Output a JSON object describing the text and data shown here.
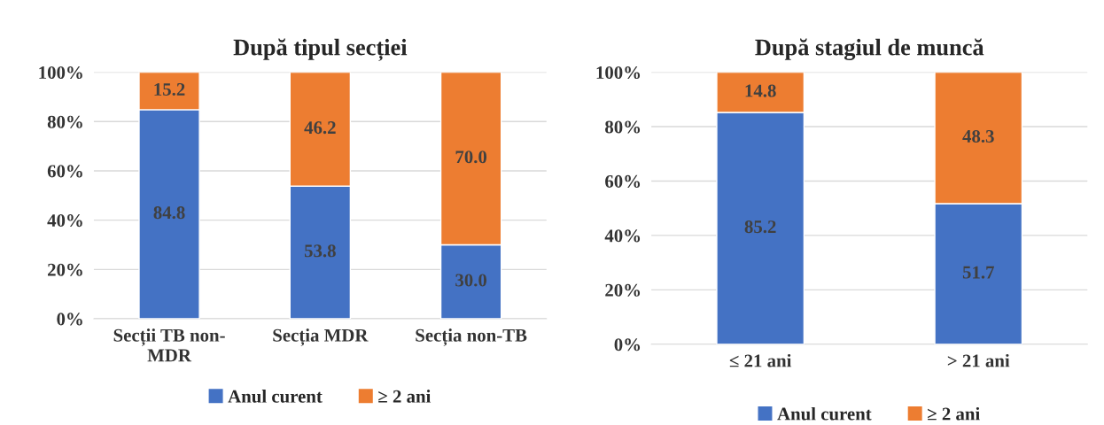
{
  "chart_data": [
    {
      "type": "bar",
      "stacked": true,
      "title": "După tipul secției",
      "categories": [
        "Secții TB non-MDR",
        "Secția MDR",
        "Secția non-TB"
      ],
      "series": [
        {
          "name": "Anul curent",
          "color": "#4472c4",
          "values": [
            84.8,
            53.8,
            30
          ],
          "value_labels": [
            "84.8",
            "53.8",
            "30.0"
          ]
        },
        {
          "name": "≥ 2 ani",
          "color": "#ed7d31",
          "values": [
            15.2,
            46.2,
            70
          ],
          "value_labels": [
            "15.2",
            "46.2",
            "70.0"
          ]
        }
      ],
      "ylim": [
        0,
        100
      ],
      "yticks": [
        {
          "value": 0,
          "label": "0%"
        },
        {
          "value": 20,
          "label": "20%"
        },
        {
          "value": 40,
          "label": "40%"
        },
        {
          "value": 60,
          "label": "60%"
        },
        {
          "value": 80,
          "label": "80%"
        },
        {
          "value": 100,
          "label": "100%"
        }
      ],
      "grid": "y",
      "legend": "bottom"
    },
    {
      "type": "bar",
      "stacked": true,
      "title": "După stagiul de muncă",
      "categories": [
        "≤ 21 ani",
        "> 21 ani"
      ],
      "series": [
        {
          "name": "Anul curent",
          "color": "#4472c4",
          "values": [
            85.2,
            51.7
          ]
        },
        {
          "name": "≥ 2 ani",
          "color": "#ed7d31",
          "values": [
            14.8,
            48.3
          ]
        }
      ],
      "ylim": [
        0,
        100
      ],
      "yticks": [
        {
          "value": 0,
          "label": "0%"
        },
        {
          "value": 20,
          "label": "20%"
        },
        {
          "value": 40,
          "label": "40%"
        },
        {
          "value": 60,
          "label": "60%"
        },
        {
          "value": 80,
          "label": "80%"
        },
        {
          "value": 100,
          "label": "100%"
        }
      ],
      "grid": "y",
      "legend": "bottom",
      "data_labels": true
    }
  ]
}
